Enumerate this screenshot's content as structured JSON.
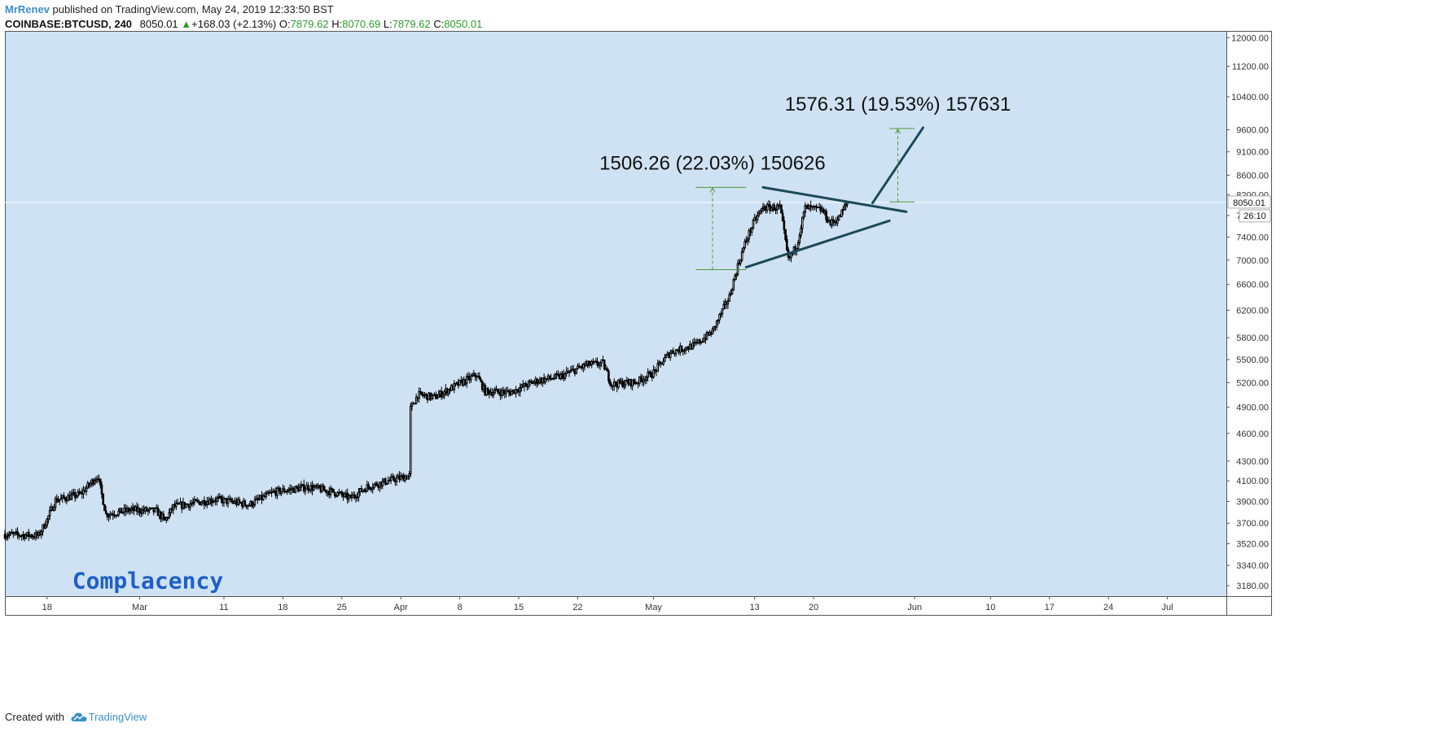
{
  "header": {
    "author": "MrRenev",
    "published_text": " published on TradingView.com, May 24, 2019 12:33:50 BST",
    "symbol": "COINBASE:BTCUSD, 240",
    "last": "8050.01",
    "change": "+168.03 (+2.13%)",
    "o_label": "O:",
    "o_value": "7879.62",
    "h_label": "H:",
    "h_value": "8070.69",
    "l_label": "L:",
    "l_value": "7879.62",
    "c_label": "C:",
    "c_value": "8050.01",
    "up_icon": "triangle-up-icon"
  },
  "footer": {
    "created_with": "Created with",
    "brand": "TradingView",
    "logo_icon": "tradingview-cloud-icon"
  },
  "colors": {
    "plot_bg": "#cfe2f3",
    "candle": "#000000",
    "trend": "#1b4a5a",
    "measure": "#4a9a3a",
    "up": "#2a9d2a",
    "author": "#3a8ec9"
  },
  "chart_data": {
    "type": "candlestick",
    "y_scale": "log",
    "ylim": [
      3100,
      12200
    ],
    "y_ticks": [
      "12000.00",
      "11200.00",
      "10400.00",
      "9600.00",
      "9100.00",
      "8600.00",
      "8200.00",
      "7800.00",
      "7400.00",
      "7000.00",
      "6600.00",
      "6200.00",
      "5800.00",
      "5500.00",
      "5200.00",
      "4900.00",
      "4600.00",
      "4300.00",
      "4100.00",
      "3900.00",
      "3700.00",
      "3520.00",
      "3340.00",
      "3180.00"
    ],
    "x_range": [
      "2019-02-13",
      "2019-07-08"
    ],
    "x_ticks": [
      {
        "date": "2019-02-18",
        "label": "18"
      },
      {
        "date": "2019-03-01",
        "label": "Mar"
      },
      {
        "date": "2019-03-11",
        "label": "11"
      },
      {
        "date": "2019-03-18",
        "label": "18"
      },
      {
        "date": "2019-03-25",
        "label": "25"
      },
      {
        "date": "2019-04-01",
        "label": "Apr"
      },
      {
        "date": "2019-04-08",
        "label": "8"
      },
      {
        "date": "2019-04-15",
        "label": "15"
      },
      {
        "date": "2019-04-22",
        "label": "22"
      },
      {
        "date": "2019-05-01",
        "label": "May"
      },
      {
        "date": "2019-05-13",
        "label": "13"
      },
      {
        "date": "2019-05-20",
        "label": "20"
      },
      {
        "date": "2019-06-01",
        "label": "Jun"
      },
      {
        "date": "2019-06-10",
        "label": "10"
      },
      {
        "date": "2019-06-17",
        "label": "17"
      },
      {
        "date": "2019-06-24",
        "label": "24"
      },
      {
        "date": "2019-07-01",
        "label": "Jul"
      }
    ],
    "price_path": [
      [
        "2019-02-13",
        3600
      ],
      [
        "2019-02-17",
        3590
      ],
      [
        "2019-02-18",
        3730
      ],
      [
        "2019-02-19",
        3910
      ],
      [
        "2019-02-22",
        3970
      ],
      [
        "2019-02-24",
        4150
      ],
      [
        "2019-02-25",
        3780
      ],
      [
        "2019-02-28",
        3820
      ],
      [
        "2019-03-03",
        3810
      ],
      [
        "2019-03-04",
        3720
      ],
      [
        "2019-03-05",
        3850
      ],
      [
        "2019-03-10",
        3920
      ],
      [
        "2019-03-14",
        3870
      ],
      [
        "2019-03-17",
        3990
      ],
      [
        "2019-03-21",
        4040
      ],
      [
        "2019-03-24",
        3990
      ],
      [
        "2019-03-26",
        3930
      ],
      [
        "2019-03-28",
        4040
      ],
      [
        "2019-03-31",
        4110
      ],
      [
        "2019-04-02",
        4150
      ],
      [
        "2019-04-02",
        4850
      ],
      [
        "2019-04-03",
        5050
      ],
      [
        "2019-04-05",
        5020
      ],
      [
        "2019-04-08",
        5190
      ],
      [
        "2019-04-10",
        5300
      ],
      [
        "2019-04-11",
        5090
      ],
      [
        "2019-04-14",
        5080
      ],
      [
        "2019-04-17",
        5220
      ],
      [
        "2019-04-20",
        5280
      ],
      [
        "2019-04-23",
        5430
      ],
      [
        "2019-04-25",
        5450
      ],
      [
        "2019-04-26",
        5180
      ],
      [
        "2019-04-29",
        5210
      ],
      [
        "2019-05-01",
        5330
      ],
      [
        "2019-05-03",
        5600
      ],
      [
        "2019-05-06",
        5700
      ],
      [
        "2019-05-08",
        5890
      ],
      [
        "2019-05-10",
        6400
      ],
      [
        "2019-05-11",
        6900
      ],
      [
        "2019-05-12",
        7350
      ],
      [
        "2019-05-13",
        7700
      ],
      [
        "2019-05-14",
        7950
      ],
      [
        "2019-05-16",
        7950
      ],
      [
        "2019-05-17",
        7000
      ],
      [
        "2019-05-18",
        7250
      ],
      [
        "2019-05-19",
        7950
      ],
      [
        "2019-05-21",
        7900
      ],
      [
        "2019-05-22",
        7650
      ],
      [
        "2019-05-23",
        7750
      ],
      [
        "2019-05-24",
        8050
      ]
    ],
    "last_price": "8050.01",
    "countdown": "26:10",
    "trendlines": [
      {
        "name": "triangle-upper",
        "from": [
          "2019-05-14",
          8350
        ],
        "to": [
          "2019-05-31",
          7870
        ]
      },
      {
        "name": "triangle-lower",
        "from": [
          "2019-05-12",
          6880
        ],
        "to": [
          "2019-05-29",
          7700
        ]
      },
      {
        "name": "breakout-line",
        "from": [
          "2019-05-27",
          8040
        ],
        "to": [
          "2019-06-02",
          9650
        ]
      }
    ],
    "measurements": [
      {
        "text": "1506.26 (22.03%) 150626",
        "from_price": 6840,
        "to_price": 8350,
        "date": "2019-05-08",
        "span": [
          "2019-05-06",
          "2019-05-12"
        ]
      },
      {
        "text": "1576.31 (19.53%) 157631",
        "from_price": 8060,
        "to_price": 9630,
        "date": "2019-05-30",
        "span": [
          "2019-05-29",
          "2019-06-01"
        ]
      }
    ],
    "annotations": [
      {
        "text": "Complacency",
        "date": "2019-02-21",
        "price": 3160
      }
    ]
  }
}
